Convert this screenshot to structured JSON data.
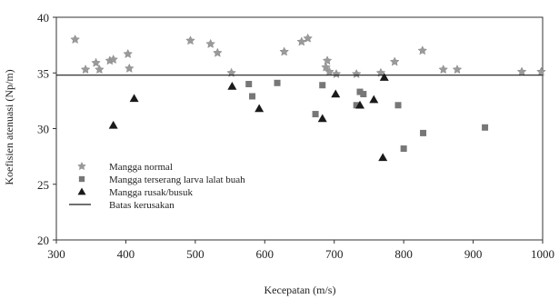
{
  "chart_data": {
    "type": "scatter",
    "xlabel": "Kecepatan (m/s)",
    "ylabel": "Koefisien atenuasi (Np/m)",
    "xlim": [
      300,
      1000
    ],
    "ylim": [
      20,
      40
    ],
    "x_ticks": [
      300,
      400,
      500,
      600,
      700,
      800,
      900,
      1000
    ],
    "y_ticks": [
      20,
      25,
      30,
      35,
      40
    ],
    "grid": false,
    "legend_position": "bottom-left",
    "colors": {
      "normal": "#9a9a9a",
      "larva": "#777777",
      "rusak": "#1a1a1a",
      "batas": "#1a1a1a"
    },
    "series": [
      {
        "name": "Mangga normal",
        "marker": "star",
        "points": [
          [
            327,
            38.0
          ],
          [
            342,
            35.3
          ],
          [
            357,
            35.9
          ],
          [
            362,
            35.3
          ],
          [
            377,
            36.1
          ],
          [
            382,
            36.2
          ],
          [
            403,
            36.7
          ],
          [
            405,
            35.4
          ],
          [
            493,
            37.9
          ],
          [
            522,
            37.6
          ],
          [
            532,
            36.8
          ],
          [
            552,
            35.0
          ],
          [
            628,
            36.9
          ],
          [
            653,
            37.8
          ],
          [
            662,
            38.1
          ],
          [
            688,
            35.5
          ],
          [
            690,
            36.1
          ],
          [
            693,
            35.1
          ],
          [
            703,
            34.9
          ],
          [
            732,
            34.9
          ],
          [
            767,
            35.0
          ],
          [
            787,
            36.0
          ],
          [
            827,
            37.0
          ],
          [
            857,
            35.3
          ],
          [
            877,
            35.3
          ],
          [
            970,
            35.1
          ],
          [
            998,
            35.1
          ]
        ]
      },
      {
        "name": "Mangga terserang larva lalat buah",
        "marker": "square",
        "points": [
          [
            577,
            34.0
          ],
          [
            582,
            32.9
          ],
          [
            618,
            34.1
          ],
          [
            673,
            31.3
          ],
          [
            683,
            33.9
          ],
          [
            732,
            32.1
          ],
          [
            737,
            33.3
          ],
          [
            742,
            33.1
          ],
          [
            792,
            32.1
          ],
          [
            800,
            28.2
          ],
          [
            828,
            29.6
          ],
          [
            917,
            30.1
          ]
        ]
      },
      {
        "name": "Mangga rusak/busuk",
        "marker": "triangle",
        "points": [
          [
            382,
            30.3
          ],
          [
            412,
            32.7
          ],
          [
            553,
            33.8
          ],
          [
            592,
            31.8
          ],
          [
            683,
            30.9
          ],
          [
            702,
            33.1
          ],
          [
            737,
            32.1
          ],
          [
            757,
            32.6
          ],
          [
            770,
            27.4
          ],
          [
            772,
            34.6
          ]
        ]
      },
      {
        "name": "Batas kerusakan",
        "marker": "line",
        "y": 34.8
      }
    ]
  }
}
